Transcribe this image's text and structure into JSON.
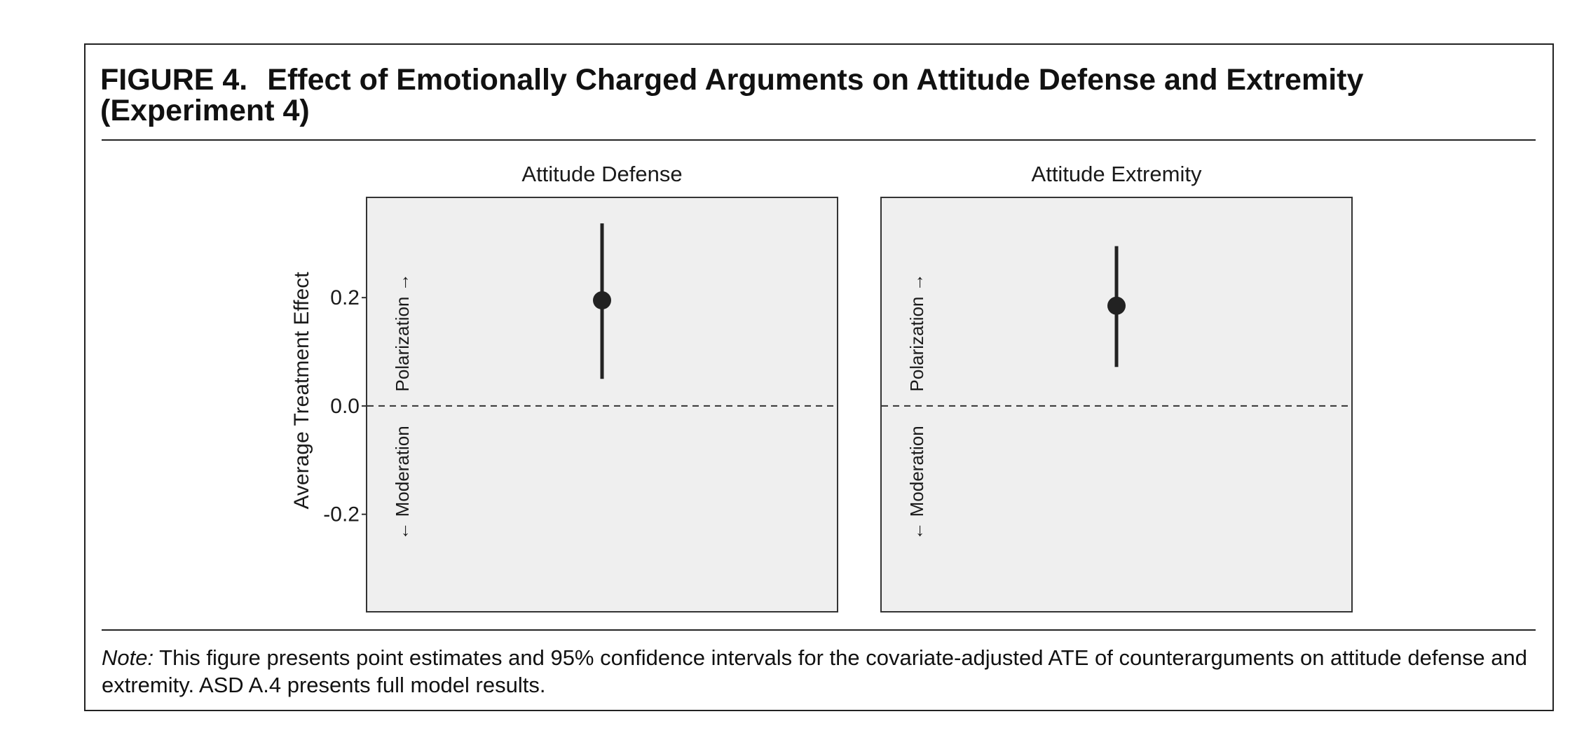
{
  "figure": {
    "label": "FIGURE 4.",
    "title": "Effect of Emotionally Charged Arguments on Attitude Defense and Extremity (Experiment 4)"
  },
  "note": {
    "label": "Note:",
    "text": " This figure presents point estimates and 95% confidence intervals for the covariate-adjusted ATE of counterarguments on attitude defense and extremity. ASD A.4 presents full model results."
  },
  "colors": {
    "panel_fill": "#efefef",
    "panel_border": "#333333",
    "point": "#222222",
    "reference_line": "#333333"
  },
  "chart_data": {
    "type": "scatter",
    "ylabel": "Average Treatment Effect",
    "ylim": [
      -0.38,
      0.385
    ],
    "yticks": [
      0.2,
      0.0,
      -0.2
    ],
    "ytick_labels": [
      "0.2",
      "0.0",
      "-0.2"
    ],
    "reference_line": {
      "y": 0,
      "style": "dashed"
    },
    "direction_labels": {
      "up": "Polarization →",
      "down": "← Moderation"
    },
    "error_bars": "95% confidence intervals",
    "panels": [
      {
        "title": "Attitude Defense",
        "estimate": 0.195,
        "ci_low": 0.05,
        "ci_high": 0.337
      },
      {
        "title": "Attitude Extremity",
        "estimate": 0.185,
        "ci_low": 0.072,
        "ci_high": 0.295
      }
    ]
  }
}
